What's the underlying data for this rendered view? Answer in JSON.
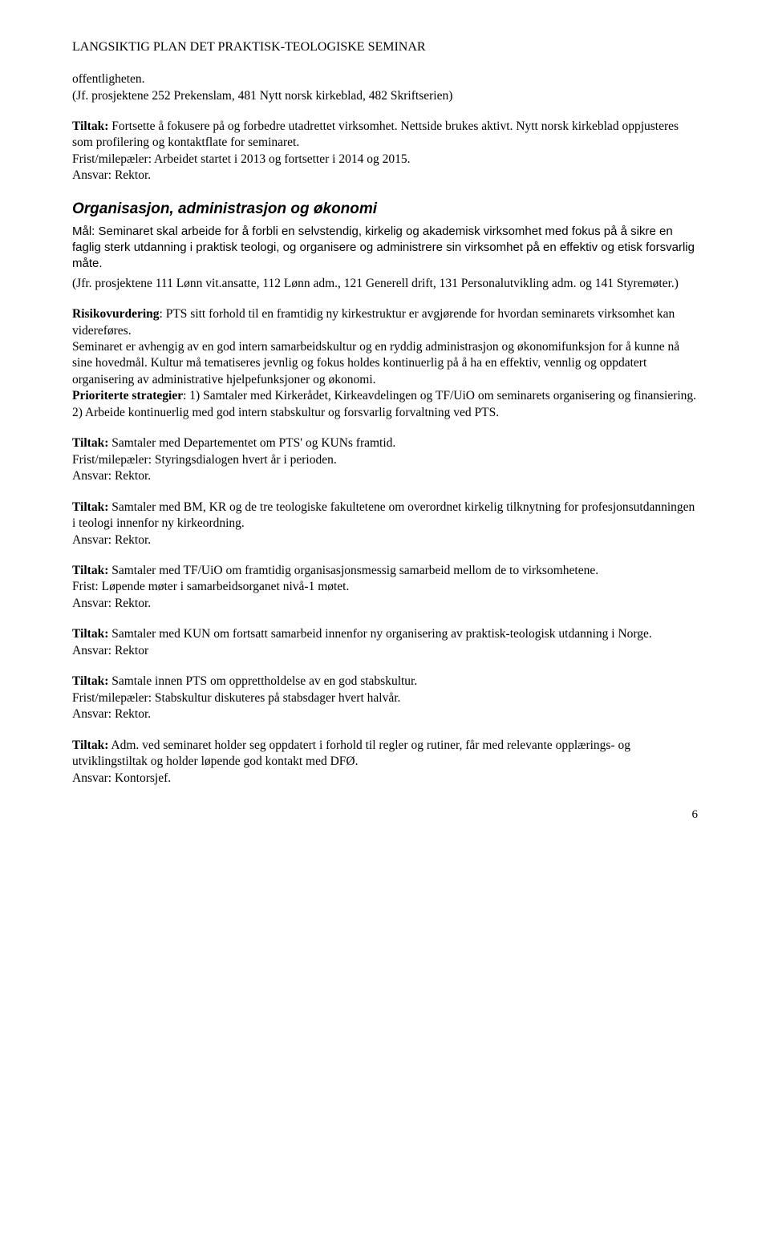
{
  "header": "LANGSIKTIG PLAN DET PRAKTISK-TEOLOGISKE SEMINAR",
  "para1_a": "offentligheten.",
  "para1_b": "(Jf. prosjektene 252 Prekenslam, 481 Nytt norsk kirkeblad, 482 Skriftserien)",
  "para2_lead": "Tiltak:",
  "para2_rest": " Fortsette å fokusere på og forbedre utadrettet virksomhet. Nettside brukes aktivt. Nytt norsk kirkeblad oppjusteres som profilering og kontaktflate for seminaret.",
  "para2_l2": "Frist/milepæler: Arbeidet startet i 2013 og fortsetter i 2014 og 2015.",
  "para2_l3": "Ansvar: Rektor.",
  "section_title": "Organisasjon, administrasjon og økonomi",
  "goal_lead": "Mål: ",
  "goal_rest": "Seminaret skal arbeide for å forbli en selvstendig, kirkelig og akademisk virksomhet med fokus på å sikre en faglig sterk utdanning i praktisk teologi, og organisere og administrere sin virksomhet på en effektiv og etisk forsvarlig måte.",
  "jfr": "(Jfr. prosjektene 111 Lønn vit.ansatte, 112 Lønn adm., 121 Generell drift, 131 Personalutvikling adm. og 141 Styremøter.)",
  "risk_lead": "Risikovurdering",
  "risk_rest": ": PTS sitt forhold til en framtidig ny kirkestruktur er avgjørende for hvordan seminarets virksomhet kan videreføres.",
  "risk_p2": "Seminaret er avhengig av en god intern samarbeidskultur og en ryddig administrasjon og økonomifunksjon for å kunne nå sine hovedmål. Kultur må tematiseres jevnlig og fokus holdes kontinuerlig på å ha en effektiv, vennlig og oppdatert organisering av administrative hjelpefunksjoner og økonomi.",
  "prio_lead": "Prioriterte strategier",
  "prio_rest": ": 1) Samtaler med Kirkerådet, Kirkeavdelingen og TF/UiO om seminarets organisering og finansiering.",
  "prio_l2": "2) Arbeide kontinuerlig med god intern stabskultur og forsvarlig forvaltning ved PTS.",
  "t1_lead": "Tiltak:",
  "t1_rest": " Samtaler med Departementet om PTS' og KUNs framtid.",
  "t1_l2": "Frist/milepæler: Styringsdialogen hvert år i perioden.",
  "t1_l3": "Ansvar: Rektor.",
  "t2_lead": "Tiltak:",
  "t2_rest": " Samtaler med BM, KR og de tre teologiske fakultetene om overordnet kirkelig tilknytning for profesjonsutdanningen i teologi innenfor ny kirkeordning.",
  "t2_l2": "Ansvar: Rektor.",
  "t3_lead": "Tiltak:",
  "t3_rest": " Samtaler med TF/UiO om framtidig organisasjonsmessig samarbeid mellom de to virksomhetene.",
  "t3_l2": "Frist: Løpende møter i samarbeidsorganet nivå-1 møtet.",
  "t3_l3": "Ansvar: Rektor.",
  "t4_lead": "Tiltak:",
  "t4_rest": " Samtaler med KUN om fortsatt samarbeid innenfor ny organisering av praktisk-teologisk utdanning i Norge.",
  "t4_l2": "Ansvar: Rektor",
  "t5_lead": "Tiltak:",
  "t5_rest": " Samtale innen PTS om opprettholdelse av en god stabskultur.",
  "t5_l2": "Frist/milepæler: Stabskultur diskuteres på stabsdager hvert halvår.",
  "t5_l3": "Ansvar: Rektor.",
  "t6_lead": "Tiltak:",
  "t6_rest": " Adm. ved seminaret holder seg oppdatert i forhold til regler og rutiner, får med relevante opplærings- og utviklingstiltak og holder løpende god kontakt med DFØ.",
  "t6_l2": "Ansvar: Kontorsjef.",
  "page_number": "6"
}
